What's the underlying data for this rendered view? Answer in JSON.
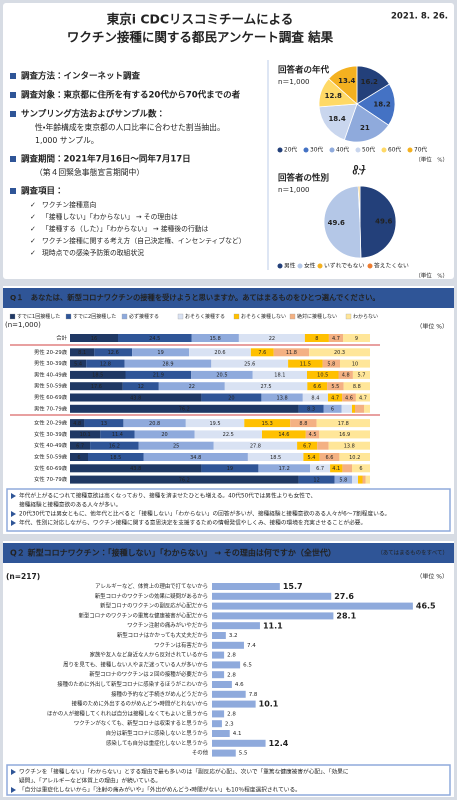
{
  "slide1": {
    "title_lines": [
      "東京i CDCリスコミチームによる",
      "ワクチン接種に関する都民アンケート調査 結果"
    ],
    "date": "2021. 8. 26.",
    "items": [
      {
        "text": "調査方法：インターネット調査",
        "sub": []
      },
      {
        "text": "調査対象：東京都に住所を有する20代から70代までの者",
        "sub": []
      },
      {
        "text": "サンプリング方法およびサンプル数：",
        "sub": [
          "性・年齢構成を東京都の人口比率に合わせた割当抽出。",
          "1,000 サンプル。"
        ]
      },
      {
        "text": "調査期間：2021年7月16日～同年7月17日",
        "sub": [
          "（第４回緊急事態宣言期間中）"
        ]
      },
      {
        "text": "調査項目：",
        "sub": [
          "ワクチン接種意向",
          "「接種しない」「わからない」 → その理由は",
          "「接種する（した）」「わからない」 → 接種後の行動は",
          "ワクチン接種に関する考え方（自己決定権、インセンティブなど）",
          "現時点での感染予防策の取組状況"
        ]
      }
    ]
  },
  "q1_heading": "Q１　あなたは、新型コロナワクチンの接種を受けようと思いますか。あてはまるものをひとつ選んでください。",
  "q1_notes": [
    [
      "年代が上がるにつれて接種意欲は高くなっており、接種を済ませたひとも増える。40代50代では男性よりも女性で、",
      "接種経験と接種意欲のある人々が多い。"
    ],
    [
      "20代30代では男女ともに、他年代と比べると「接種しない」「わからない」の回答が多いが、接種経験と接種意欲のある人々が6〜7割程度いる。"
    ],
    [
      "年代、性別に対応しながら、ワクチン接種に関する意思決定を支援するための情報発信やしくみ、接種の環境を充実させることが必要。"
    ]
  ],
  "q2_heading": "Q２ 新型コロナワクチン：「接種しない」「わからない」 → その理由は何ですか（全世代）",
  "q2_heading_note": "（あてはまるものをすべて）",
  "q2_notes": [
    [
      "ワクチンを「接種しない」「わからない」とする理由で最も多いのは「副反応が心配」、次いで「重篤な健康被害が心配」、「効果に",
      "疑問」、「アレルギーなど体質上の理由」が続いている。"
    ],
    [
      "「自分は重症化しないから」「注射の痛みがいや」「外出がめんどう・時間がない」も10％程度選択されている。"
    ]
  ],
  "chart_data": [
    {
      "type": "pie",
      "title": "回答者の年代",
      "subtitle": "n＝1,000",
      "unit": "（単位　%）",
      "categories": [
        "20代",
        "30代",
        "40代",
        "50代",
        "60代",
        "70代"
      ],
      "values": [
        16.2,
        18.2,
        21.0,
        18.4,
        12.8,
        13.4
      ],
      "colors": [
        "#23407a",
        "#4472c4",
        "#8faadc",
        "#c9d6ee",
        "#ffd966",
        "#f4b120"
      ]
    },
    {
      "type": "pie",
      "title": "回答者の性別",
      "subtitle": "n＝1,000",
      "unit": "（単位　%）",
      "categories": [
        "男性",
        "女性",
        "いずれでもない",
        "答えたくない"
      ],
      "values": [
        49.6,
        49.6,
        0.7,
        0.1
      ],
      "colors": [
        "#23407a",
        "#b4c7e7",
        "#f4b120",
        "#ed7d31"
      ]
    },
    {
      "type": "stacked_bar",
      "n": "(n=1,000)",
      "unit": "（単位 %）",
      "xlim": [
        0,
        100
      ],
      "categories": [
        "合計",
        "男性 20-29歳",
        "男性 30-39歳",
        "男性 40-49歳",
        "男性 50-59歳",
        "男性 60-69歳",
        "男性 70-79歳",
        "女性 20-29歳",
        "女性 30-39歳",
        "女性 40-49歳",
        "女性 50-59歳",
        "女性 60-69歳",
        "女性 70-79歳"
      ],
      "series": [
        {
          "name": "すでに1回接種した",
          "color": "#1f3864",
          "values": [
            16.0,
            8.1,
            5.4,
            18.5,
            17.6,
            43.8,
            76.2,
            4.8,
            10.1,
            6.7,
            6.0,
            43.8,
            76.2
          ]
        },
        {
          "name": "すでに2回接種した",
          "color": "#2f5597",
          "values": [
            24.5,
            12.6,
            12.8,
            21.9,
            12.0,
            20.0,
            8.3,
            13.0,
            11.4,
            16.2,
            18.5,
            19.0,
            12.0
          ]
        },
        {
          "name": "必ず接種する",
          "color": "#8faadc",
          "values": [
            15.8,
            19.0,
            28.9,
            20.5,
            22.0,
            13.8,
            6.0,
            20.8,
            20.0,
            25.0,
            34.8,
            17.2,
            5.8
          ]
        },
        {
          "name": "おそらく接種する",
          "color": "#d9e2f3",
          "values": [
            22.0,
            20.6,
            25.6,
            18.1,
            27.5,
            8.4,
            3.5,
            19.5,
            22.5,
            27.8,
            18.5,
            6.7,
            2.0
          ]
        },
        {
          "name": "おそらく接種しない",
          "color": "#ffc000",
          "values": [
            8.0,
            7.6,
            11.5,
            10.5,
            6.6,
            4.7,
            1.0,
            15.3,
            14.6,
            6.7,
            5.4,
            4.1,
            1.5
          ]
        },
        {
          "name": "絶対に接種しない",
          "color": "#f4b183",
          "values": [
            4.7,
            11.8,
            5.8,
            4.8,
            5.5,
            4.6,
            3.0,
            8.8,
            4.5,
            3.8,
            6.6,
            3.2,
            1.0
          ]
        },
        {
          "name": "わからない",
          "color": "#ffe699",
          "values": [
            9.0,
            20.3,
            10.0,
            5.7,
            8.8,
            4.7,
            2.0,
            17.8,
            16.9,
            13.8,
            10.2,
            6.0,
            1.5
          ]
        }
      ]
    },
    {
      "type": "bar",
      "orientation": "horizontal",
      "n": "(n=217)",
      "unit": "（単位 %）",
      "xlim": [
        0,
        50
      ],
      "color": "#8faadc",
      "categories": [
        "アレルギーなど、体質上の理由で打てないから",
        "新型コロナのワクチンの効果に疑問があるから",
        "新型コロナのワクチンの副反応が心配だから",
        "新型コロナのワクチンの重篤な健康被害が心配だから",
        "ワクチン注射の痛みがいやだから",
        "新型コロナはかかっても大丈夫だから",
        "ワクチンは有害だから",
        "家族や友人など身近な人から反対されているから",
        "周りを見ても、接種しない人やまだ迷っている人が多いから",
        "新型コロナのワクチンは２回の接種が必要だから",
        "接種のために外出して新型コロナに感染するほうがこわいから",
        "接種の予約など手続きがめんどうだから",
        "接種のために外出するのがめんどう・時間がとれないから",
        "ほかの人が接種してくれれば自分は接種しなくてもよいと思うから",
        "ワクチンがなくても、新型コロナは収束すると思うから",
        "自分は新型コロナに感染しないと思うから",
        "感染しても自分は重症化しないと思うから",
        "その他"
      ],
      "values": [
        15.7,
        27.6,
        46.5,
        28.1,
        11.1,
        3.2,
        7.4,
        2.8,
        6.5,
        2.8,
        4.6,
        7.8,
        10.1,
        2.8,
        2.3,
        4.1,
        12.4,
        5.5
      ],
      "emphasis": [
        15.7,
        27.6,
        46.5,
        28.1,
        11.1,
        10.1,
        12.4
      ]
    }
  ]
}
